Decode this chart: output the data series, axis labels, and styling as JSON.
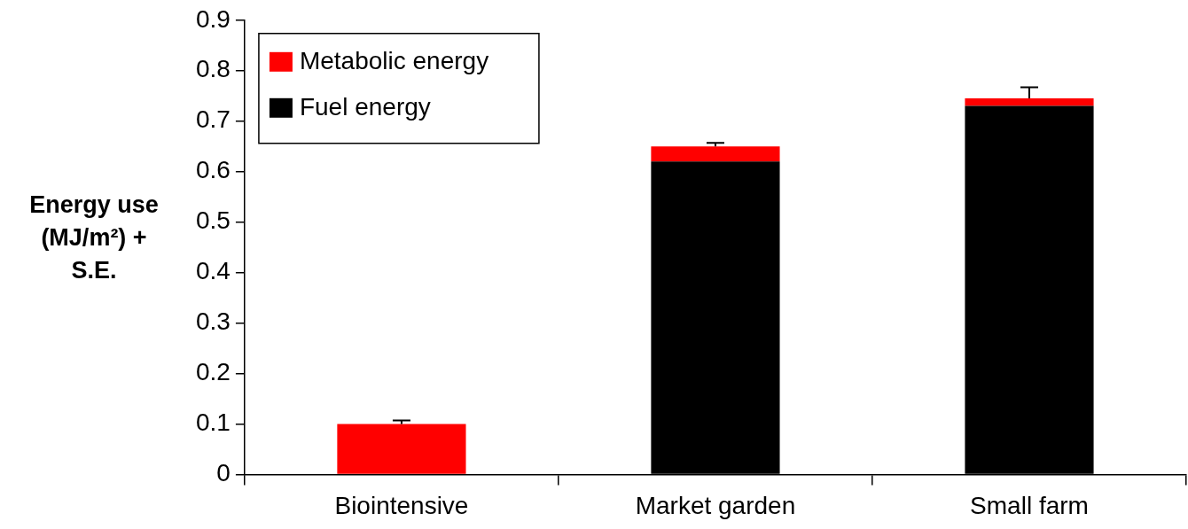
{
  "chart_data": {
    "type": "bar",
    "stacked": true,
    "ylabel": "Energy use (MJ/m²) + S.E.",
    "categories": [
      "Biointensive",
      "Market garden",
      "Small farm"
    ],
    "series": [
      {
        "name": "Fuel energy",
        "color": "#000000",
        "values": [
          0,
          0.62,
          0.73
        ]
      },
      {
        "name": "Metabolic energy",
        "color": "#ff0000",
        "values": [
          0.1,
          0.03,
          0.015
        ],
        "errors": [
          [
            0.1,
            0.107
          ],
          [
            0.65,
            0.657
          ],
          [
            0.745,
            0.767
          ]
        ]
      }
    ],
    "ylim": [
      0,
      0.9
    ],
    "yticks": [
      0,
      0.1,
      0.2,
      0.3,
      0.4,
      0.5,
      0.6,
      0.7,
      0.8,
      0.9
    ],
    "grid": false,
    "legend": "top left"
  }
}
